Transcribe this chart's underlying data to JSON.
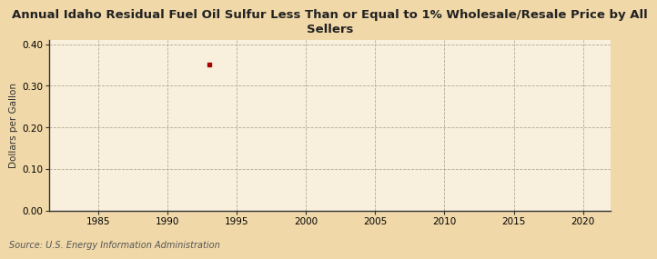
{
  "title": "Annual Idaho Residual Fuel Oil Sulfur Less Than or Equal to 1% Wholesale/Resale Price by All\nSellers",
  "ylabel": "Dollars per Gallon",
  "source": "Source: U.S. Energy Information Administration",
  "xlim": [
    1981.5,
    2022
  ],
  "ylim": [
    0.0,
    0.41
  ],
  "xticks": [
    1985,
    1990,
    1995,
    2000,
    2005,
    2010,
    2015,
    2020
  ],
  "yticks": [
    0.0,
    0.1,
    0.2,
    0.3,
    0.4
  ],
  "data_x": [
    1993
  ],
  "data_y": [
    0.352
  ],
  "point_color": "#aa0000",
  "background_color": "#f5deb3",
  "plot_bg_color": "#faebd7",
  "grid_color": "#b0a090",
  "title_fontsize": 9.5,
  "label_fontsize": 7.5,
  "tick_fontsize": 7.5,
  "source_fontsize": 7
}
